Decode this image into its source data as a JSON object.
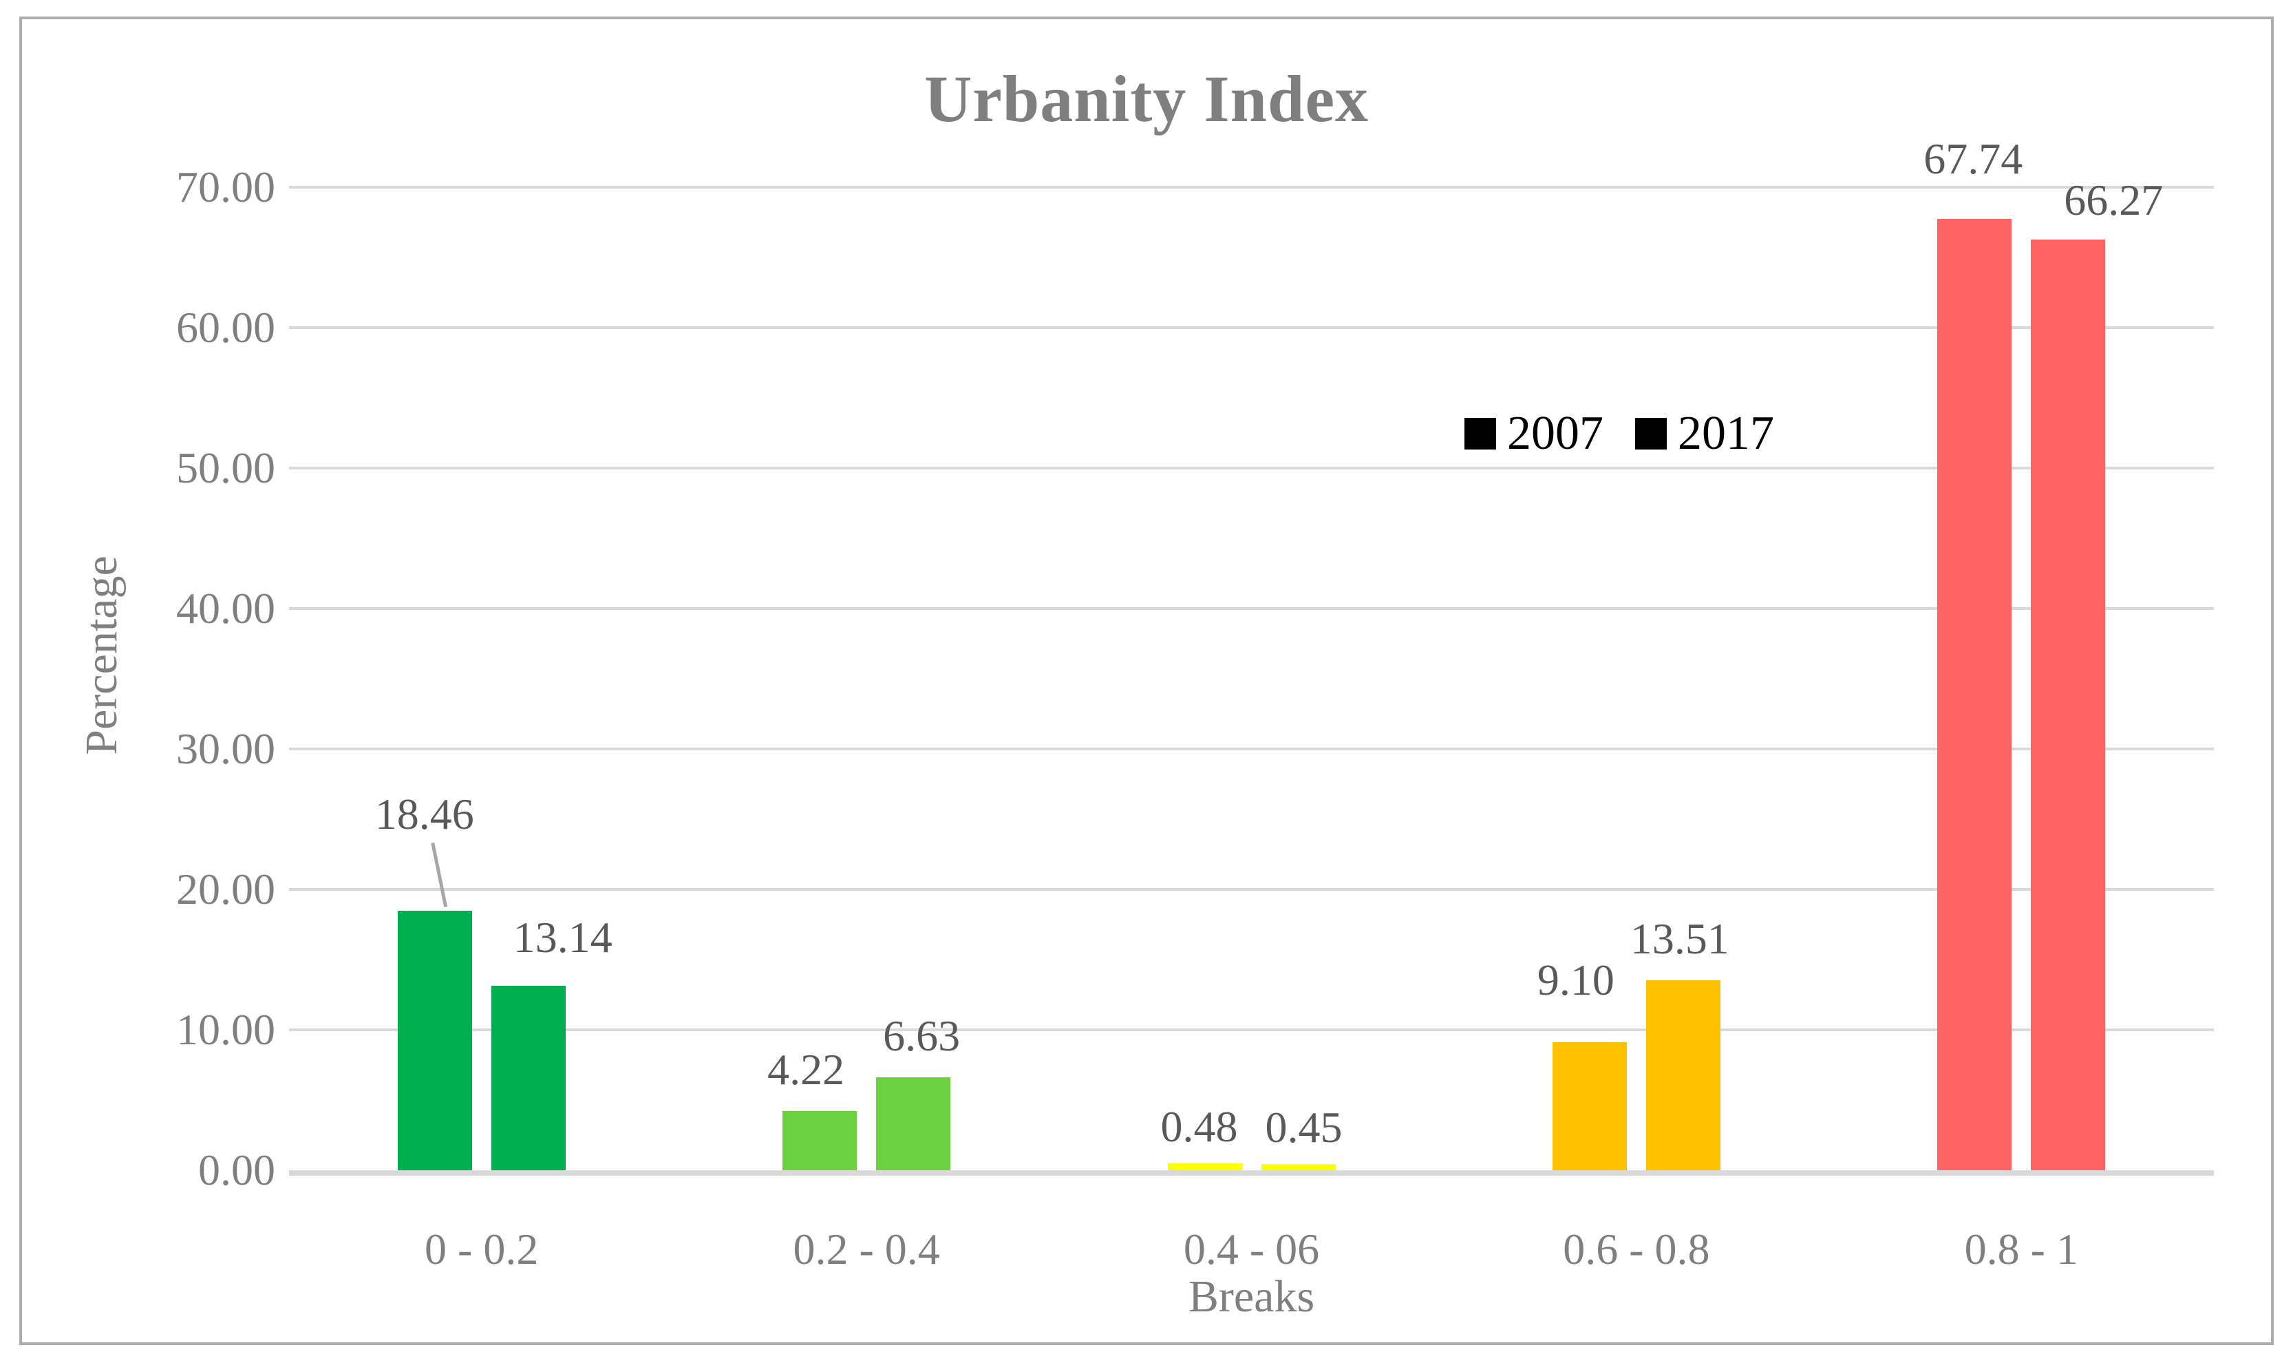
{
  "chart_data": {
    "type": "bar",
    "title": "Urbanity Index",
    "xlabel": "Breaks",
    "ylabel": "Percentage",
    "categories": [
      "0 - 0.2",
      "0.2 - 0.4",
      "0.4 - 06",
      "0.6 - 0.8",
      "0.8 - 1"
    ],
    "series": [
      {
        "name": "2007",
        "values": [
          18.46,
          4.22,
          0.48,
          9.1,
          67.74
        ]
      },
      {
        "name": "2017",
        "values": [
          13.14,
          6.63,
          0.45,
          13.51,
          66.27
        ]
      }
    ],
    "ylim": [
      0,
      70
    ],
    "ytick_step": 10,
    "ytick_labels": [
      "0.00",
      "10.00",
      "20.00",
      "30.00",
      "40.00",
      "50.00",
      "60.00",
      "70.00"
    ],
    "grid": "horizontal",
    "show_data_labels": true,
    "data_label_decimals": 2,
    "category_colors": [
      "#00AE4F",
      "#6CD13E",
      "#FFFF00",
      "#FFC000",
      "#FF6363"
    ],
    "legend": {
      "position": "inside-plot-upper-right",
      "items": [
        "2007",
        "2017"
      ],
      "marker_color": "#000000"
    }
  },
  "colors": {
    "background": "#FFFFFF",
    "chart_border": "#ACACAC",
    "title_text": "#7F7F7F",
    "axis_text": "#7F7F7F",
    "data_label_text": "#595959",
    "legend_text": "#000000",
    "gridline": "#D9D9D9",
    "axis_line": "#D9D9D9",
    "leader_line": "#A6A6A6"
  }
}
